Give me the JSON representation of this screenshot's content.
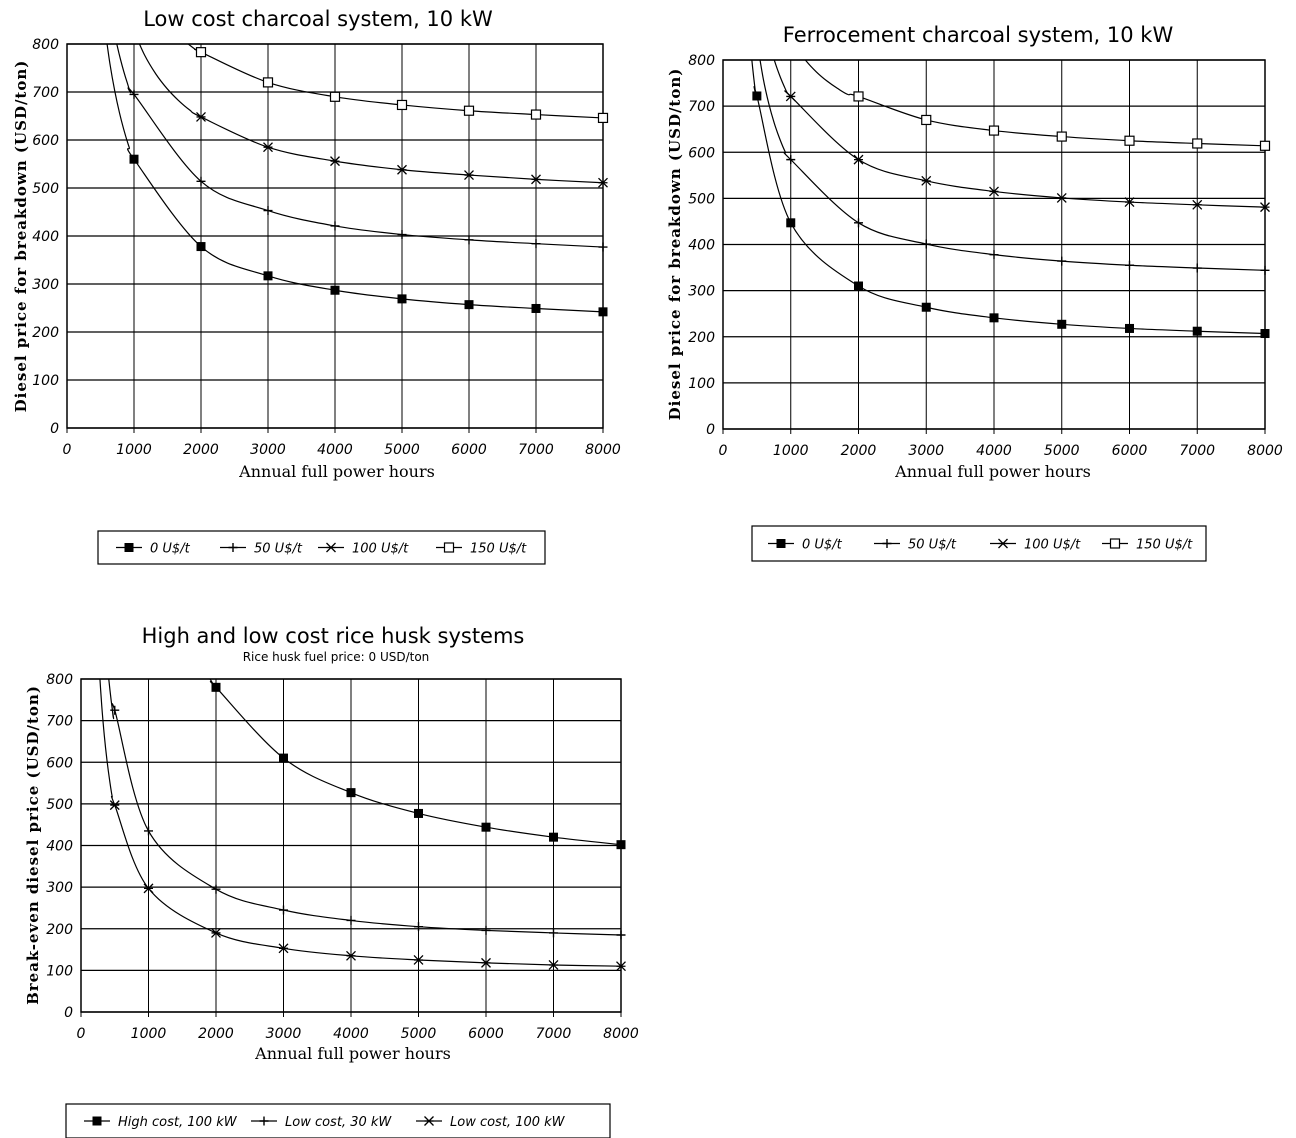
{
  "chart_data": [
    {
      "type": "line",
      "title": "Low cost charcoal system,  10 kW",
      "xlabel": "Annual full power hours",
      "ylabel": "Diesel price for breakdown (USD/ton)",
      "xlim": [
        0,
        8000
      ],
      "ylim": [
        0,
        800
      ],
      "xticks": [
        "0",
        "1000",
        "2000",
        "3000",
        "4000",
        "5000",
        "6000",
        "7000",
        "8000"
      ],
      "yticks": [
        "0",
        "100",
        "200",
        "300",
        "400",
        "500",
        "600",
        "700",
        "800"
      ],
      "grid": true,
      "legend_position": "bottom",
      "series": [
        {
          "name": "0 U$/t",
          "marker": "filled-square",
          "x": [
            1000,
            2000,
            3000,
            4000,
            5000,
            6000,
            7000,
            8000
          ],
          "y": [
            560,
            378,
            317,
            287,
            269,
            257,
            249,
            242
          ]
        },
        {
          "name": "50 U$/t",
          "marker": "plus",
          "x": [
            1000,
            2000,
            3000,
            4000,
            5000,
            6000,
            7000,
            8000
          ],
          "y": [
            695,
            514,
            453,
            421,
            403,
            392,
            384,
            377
          ]
        },
        {
          "name": "100 U$/t",
          "marker": "asterisk",
          "x": [
            2000,
            3000,
            4000,
            5000,
            6000,
            7000,
            8000
          ],
          "y": [
            648,
            585,
            556,
            538,
            527,
            518,
            511
          ]
        },
        {
          "name": "150 U$/t",
          "marker": "open-square",
          "x": [
            2000,
            3000,
            4000,
            5000,
            6000,
            7000,
            8000
          ],
          "y": [
            783,
            720,
            690,
            673,
            661,
            653,
            646
          ]
        }
      ]
    },
    {
      "type": "line",
      "title": "Ferrocement charcoal system,  10 kW",
      "xlabel": "Annual full power hours",
      "ylabel": "Diesel price for breakdown (USD/ton)",
      "xlim": [
        0,
        8000
      ],
      "ylim": [
        0,
        800
      ],
      "xticks": [
        "0",
        "1000",
        "2000",
        "3000",
        "4000",
        "5000",
        "6000",
        "7000",
        "8000"
      ],
      "yticks": [
        "0",
        "100",
        "200",
        "300",
        "400",
        "500",
        "600",
        "700",
        "800"
      ],
      "grid": true,
      "legend_position": "bottom",
      "series": [
        {
          "name": "0 U$/t",
          "marker": "filled-square",
          "x": [
            500,
            1000,
            2000,
            3000,
            4000,
            5000,
            6000,
            7000,
            8000
          ],
          "y": [
            722,
            447,
            310,
            264,
            241,
            227,
            218,
            212,
            207
          ]
        },
        {
          "name": "50 U$/t",
          "marker": "plus",
          "x": [
            1000,
            2000,
            3000,
            4000,
            5000,
            6000,
            7000,
            8000
          ],
          "y": [
            584,
            447,
            401,
            378,
            364,
            355,
            349,
            344
          ]
        },
        {
          "name": "100 U$/t",
          "marker": "asterisk",
          "x": [
            1000,
            2000,
            3000,
            4000,
            5000,
            6000,
            7000,
            8000
          ],
          "y": [
            721,
            584,
            538,
            515,
            501,
            492,
            486,
            481
          ]
        },
        {
          "name": "150 U$/t",
          "marker": "open-square",
          "x": [
            2000,
            3000,
            4000,
            5000,
            6000,
            7000,
            8000
          ],
          "y": [
            721,
            670,
            647,
            634,
            625,
            619,
            614
          ]
        }
      ]
    },
    {
      "type": "line",
      "title": "High and low cost rice husk systems",
      "subtitle": "Rice husk fuel price: 0 USD/ton",
      "xlabel": "Annual full power hours",
      "ylabel": "Break-even diesel price (USD/ton)",
      "xlim": [
        0,
        8000
      ],
      "ylim": [
        0,
        800
      ],
      "xticks": [
        "0",
        "1000",
        "2000",
        "3000",
        "4000",
        "5000",
        "6000",
        "7000",
        "8000"
      ],
      "yticks": [
        "0",
        "100",
        "200",
        "300",
        "400",
        "500",
        "600",
        "700",
        "800"
      ],
      "grid": true,
      "legend_position": "bottom",
      "series": [
        {
          "name": "High cost,  100 kW",
          "marker": "filled-square",
          "x": [
            2000,
            3000,
            4000,
            5000,
            6000,
            7000,
            8000
          ],
          "y": [
            780,
            610,
            527,
            477,
            444,
            420,
            402
          ]
        },
        {
          "name": "Low cost,  30 kW",
          "marker": "plus",
          "x": [
            500,
            1000,
            2000,
            3000,
            4000,
            5000,
            6000,
            7000,
            8000
          ],
          "y": [
            725,
            435,
            295,
            245,
            220,
            205,
            196,
            190,
            185
          ]
        },
        {
          "name": "Low cost,  100 kW",
          "marker": "asterisk",
          "x": [
            500,
            1000,
            2000,
            3000,
            4000,
            5000,
            6000,
            7000,
            8000
          ],
          "y": [
            497,
            297,
            190,
            153,
            135,
            125,
            118,
            113,
            110
          ]
        }
      ]
    }
  ]
}
